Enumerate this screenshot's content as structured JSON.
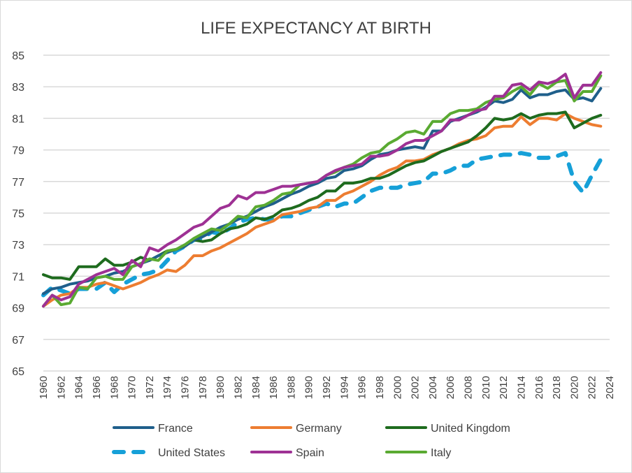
{
  "chart_data": {
    "type": "line",
    "title": "LIFE EXPECTANCY AT BIRTH",
    "xlabel": "",
    "ylabel": "",
    "ylim": [
      65,
      85
    ],
    "yticks": [
      65,
      67,
      69,
      71,
      73,
      75,
      77,
      79,
      81,
      83,
      85
    ],
    "xlim": [
      1960,
      2024
    ],
    "xticks": [
      1960,
      1962,
      1964,
      1966,
      1968,
      1970,
      1972,
      1974,
      1976,
      1978,
      1980,
      1982,
      1984,
      1986,
      1988,
      1990,
      1992,
      1994,
      1996,
      1998,
      2000,
      2002,
      2004,
      2006,
      2008,
      2010,
      2012,
      2014,
      2016,
      2018,
      2020,
      2022,
      2024
    ],
    "grid": true,
    "legend_position": "bottom",
    "x_start": 1960,
    "series": [
      {
        "name": "France",
        "color": "#1f5f8b",
        "dash": false,
        "values": [
          69.9,
          70.2,
          70.3,
          70.5,
          70.6,
          70.7,
          70.9,
          71.0,
          71.2,
          71.3,
          71.6,
          71.8,
          72.0,
          72.3,
          72.5,
          72.7,
          72.9,
          73.3,
          73.5,
          73.8,
          74.1,
          74.3,
          74.6,
          74.8,
          75.1,
          75.4,
          75.6,
          75.9,
          76.2,
          76.4,
          76.7,
          76.9,
          77.2,
          77.3,
          77.7,
          77.8,
          78.0,
          78.4,
          78.7,
          78.8,
          79.0,
          79.1,
          79.2,
          79.1,
          80.2,
          80.2,
          80.8,
          81.0,
          81.2,
          81.4,
          81.7,
          82.1,
          82.0,
          82.2,
          82.8,
          82.3,
          82.5,
          82.5,
          82.7,
          82.8,
          82.2,
          82.3,
          82.1,
          82.9
        ]
      },
      {
        "name": "Germany",
        "color": "#ed7d31",
        "dash": false,
        "values": [
          69.1,
          69.5,
          69.8,
          69.9,
          70.3,
          70.3,
          70.5,
          70.6,
          70.4,
          70.2,
          70.4,
          70.6,
          70.9,
          71.1,
          71.4,
          71.3,
          71.7,
          72.3,
          72.3,
          72.6,
          72.8,
          73.1,
          73.4,
          73.7,
          74.1,
          74.3,
          74.5,
          74.9,
          75.0,
          75.1,
          75.3,
          75.4,
          75.8,
          75.8,
          76.2,
          76.4,
          76.7,
          77.0,
          77.4,
          77.7,
          77.9,
          78.3,
          78.3,
          78.4,
          78.7,
          78.9,
          79.1,
          79.4,
          79.6,
          79.7,
          79.9,
          80.4,
          80.5,
          80.5,
          81.1,
          80.6,
          81.0,
          81.0,
          80.9,
          81.3,
          81.0,
          80.8,
          80.6,
          80.5
        ]
      },
      {
        "name": "United Kingdom",
        "color": "#1e6b1e",
        "dash": false,
        "values": [
          71.1,
          70.9,
          70.9,
          70.8,
          71.6,
          71.6,
          71.6,
          72.1,
          71.7,
          71.7,
          71.9,
          72.2,
          72.0,
          72.3,
          72.6,
          72.7,
          72.9,
          73.3,
          73.2,
          73.3,
          73.7,
          74.0,
          74.1,
          74.3,
          74.7,
          74.6,
          74.8,
          75.2,
          75.3,
          75.5,
          75.8,
          76.0,
          76.4,
          76.4,
          76.9,
          76.9,
          77.0,
          77.2,
          77.2,
          77.4,
          77.7,
          78.0,
          78.2,
          78.3,
          78.6,
          78.9,
          79.1,
          79.3,
          79.5,
          79.9,
          80.4,
          81.0,
          80.9,
          81.0,
          81.3,
          81.0,
          81.2,
          81.3,
          81.3,
          81.4,
          80.4,
          80.7,
          81.0,
          81.2
        ]
      },
      {
        "name": "United States",
        "color": "#16a0d8",
        "dash": true,
        "values": [
          69.8,
          70.3,
          70.1,
          69.9,
          70.2,
          70.2,
          70.2,
          70.6,
          70.0,
          70.5,
          70.8,
          71.1,
          71.2,
          71.4,
          72.0,
          72.6,
          72.9,
          73.3,
          73.4,
          73.8,
          73.7,
          74.0,
          74.4,
          74.6,
          74.7,
          74.6,
          74.6,
          74.8,
          74.8,
          75.0,
          75.2,
          75.4,
          75.6,
          75.4,
          75.6,
          75.6,
          76.0,
          76.4,
          76.6,
          76.6,
          76.6,
          76.8,
          76.9,
          77.0,
          77.5,
          77.5,
          77.7,
          78.0,
          78.0,
          78.4,
          78.5,
          78.6,
          78.7,
          78.7,
          78.8,
          78.7,
          78.5,
          78.5,
          78.6,
          78.8,
          77.0,
          76.3,
          77.4,
          78.4
        ]
      },
      {
        "name": "Spain",
        "color": "#9e3194",
        "dash": false,
        "values": [
          69.1,
          69.8,
          69.5,
          69.7,
          70.5,
          70.8,
          71.1,
          71.3,
          71.5,
          71.1,
          72.0,
          71.6,
          72.8,
          72.6,
          73.0,
          73.3,
          73.7,
          74.1,
          74.3,
          74.8,
          75.3,
          75.5,
          76.1,
          75.9,
          76.3,
          76.3,
          76.5,
          76.7,
          76.7,
          76.8,
          76.9,
          77.0,
          77.4,
          77.7,
          77.9,
          78.0,
          78.1,
          78.6,
          78.6,
          78.7,
          79.0,
          79.4,
          79.6,
          79.6,
          79.9,
          80.2,
          80.9,
          80.9,
          81.2,
          81.5,
          81.6,
          82.4,
          82.4,
          83.1,
          83.2,
          82.8,
          83.3,
          83.2,
          83.4,
          83.8,
          82.3,
          83.1,
          83.1,
          83.9
        ]
      },
      {
        "name": "Italy",
        "color": "#5aaa32",
        "dash": false,
        "values": [
          69.1,
          69.8,
          69.2,
          69.3,
          70.3,
          70.2,
          70.9,
          71.0,
          70.8,
          70.8,
          71.6,
          71.8,
          72.1,
          72.0,
          72.6,
          72.7,
          73.0,
          73.4,
          73.7,
          74.0,
          73.9,
          74.3,
          74.8,
          74.7,
          75.4,
          75.5,
          75.8,
          76.2,
          76.3,
          76.8,
          76.9,
          77.0,
          77.4,
          77.6,
          77.9,
          78.1,
          78.5,
          78.8,
          78.9,
          79.4,
          79.7,
          80.1,
          80.2,
          80.0,
          80.8,
          80.8,
          81.3,
          81.5,
          81.5,
          81.6,
          82.0,
          82.2,
          82.3,
          82.7,
          83.0,
          82.5,
          83.2,
          82.9,
          83.3,
          83.4,
          82.1,
          82.7,
          82.7,
          83.7
        ]
      }
    ]
  }
}
